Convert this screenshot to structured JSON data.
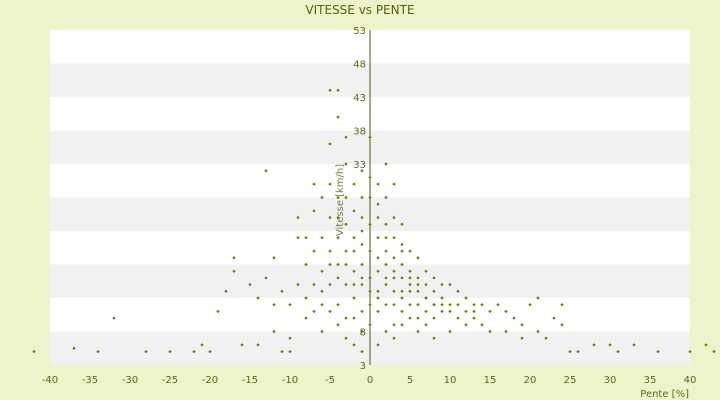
{
  "chart_data": {
    "type": "scatter",
    "title": "VITESSE vs PENTE",
    "xlabel": "Pente [%]",
    "ylabel": "Vitesse [km/h]",
    "xlim": [
      -40,
      40
    ],
    "ylim": [
      3,
      53
    ],
    "x_ticks": [
      -40,
      -35,
      -30,
      -25,
      -20,
      -15,
      -10,
      -5,
      0,
      5,
      10,
      15,
      20,
      25,
      30,
      35,
      40
    ],
    "y_ticks": [
      3,
      8,
      13,
      18,
      23,
      28,
      33,
      38,
      43,
      48,
      53
    ],
    "y_tick_labels_shown": [
      "3",
      "8",
      "33",
      "38",
      "43",
      "48",
      "53"
    ],
    "grid": "horizontal bands",
    "marker_color": "#6b7d0a",
    "band_color": "#f1f1f1",
    "series": [
      {
        "values": [
          [
            -42,
            5
          ],
          [
            -37,
            5.5
          ],
          [
            -34,
            5
          ],
          [
            -32,
            10
          ],
          [
            -28,
            5
          ],
          [
            -25,
            5
          ],
          [
            -22,
            5
          ],
          [
            -21,
            6
          ],
          [
            -20,
            5
          ],
          [
            -19,
            11
          ],
          [
            -18,
            14
          ],
          [
            -17,
            17
          ],
          [
            -17,
            19
          ],
          [
            -16,
            6
          ],
          [
            -15,
            15
          ],
          [
            -14,
            13
          ],
          [
            -14,
            6
          ],
          [
            -13,
            32
          ],
          [
            -13,
            16
          ],
          [
            -12,
            19
          ],
          [
            -12,
            12
          ],
          [
            -11,
            5
          ],
          [
            -10,
            7
          ],
          [
            -10,
            5
          ],
          [
            -9,
            22
          ],
          [
            -9,
            25
          ],
          [
            -8,
            18
          ],
          [
            -8,
            10
          ],
          [
            -7,
            26
          ],
          [
            -7,
            30
          ],
          [
            -6,
            28
          ],
          [
            -6,
            12
          ],
          [
            -5,
            30
          ],
          [
            -5,
            44
          ],
          [
            -5,
            36
          ],
          [
            -4,
            44
          ],
          [
            -4,
            40
          ],
          [
            -4,
            25
          ],
          [
            -4,
            18
          ],
          [
            -3,
            37
          ],
          [
            -3,
            33
          ],
          [
            -3,
            20
          ],
          [
            -2,
            30
          ],
          [
            -2,
            22
          ],
          [
            -2,
            10
          ],
          [
            -1,
            32
          ],
          [
            -1,
            25
          ],
          [
            -1,
            18
          ],
          [
            -1,
            8
          ],
          [
            0,
            37
          ],
          [
            0,
            28
          ],
          [
            0,
            20
          ],
          [
            0,
            12
          ],
          [
            1,
            30
          ],
          [
            1,
            22
          ],
          [
            1,
            17
          ],
          [
            1,
            14
          ],
          [
            2,
            33
          ],
          [
            2,
            28
          ],
          [
            2,
            20
          ],
          [
            2,
            15
          ],
          [
            3,
            30
          ],
          [
            3,
            22
          ],
          [
            3,
            16
          ],
          [
            3,
            12
          ],
          [
            4,
            24
          ],
          [
            4,
            18
          ],
          [
            4,
            14
          ],
          [
            5,
            20
          ],
          [
            5,
            16
          ],
          [
            5,
            12
          ],
          [
            6,
            19
          ],
          [
            6,
            14
          ],
          [
            6,
            10
          ],
          [
            7,
            17
          ],
          [
            7,
            13
          ],
          [
            7,
            9
          ],
          [
            8,
            16
          ],
          [
            8,
            12
          ],
          [
            9,
            15
          ],
          [
            9,
            11
          ],
          [
            10,
            15
          ],
          [
            10,
            11
          ],
          [
            11,
            14
          ],
          [
            11,
            10
          ],
          [
            12,
            13
          ],
          [
            12,
            9
          ],
          [
            13,
            12
          ],
          [
            13,
            10
          ],
          [
            14,
            12
          ],
          [
            14,
            9
          ],
          [
            15,
            11
          ],
          [
            15,
            8
          ],
          [
            16,
            12
          ],
          [
            17,
            11
          ],
          [
            17,
            8
          ],
          [
            18,
            10
          ],
          [
            19,
            9
          ],
          [
            19,
            7
          ],
          [
            20,
            12
          ],
          [
            21,
            8
          ],
          [
            21,
            13
          ],
          [
            22,
            7
          ],
          [
            23,
            10
          ],
          [
            24,
            12
          ],
          [
            24,
            9
          ],
          [
            25,
            5
          ],
          [
            26,
            5
          ],
          [
            28,
            6
          ],
          [
            30,
            6
          ],
          [
            31,
            5
          ],
          [
            33,
            6
          ],
          [
            36,
            5
          ],
          [
            40,
            5
          ],
          [
            42,
            6
          ],
          [
            43,
            5
          ],
          [
            -6,
            22
          ],
          [
            -5,
            20
          ],
          [
            -5,
            15
          ],
          [
            -4,
            22
          ],
          [
            -4,
            12
          ],
          [
            -3,
            24
          ],
          [
            -3,
            15
          ],
          [
            -3,
            10
          ],
          [
            -2,
            26
          ],
          [
            -2,
            17
          ],
          [
            -2,
            13
          ],
          [
            -1,
            28
          ],
          [
            -1,
            21
          ],
          [
            -1,
            15
          ],
          [
            -1,
            11
          ],
          [
            0,
            24
          ],
          [
            0,
            16
          ],
          [
            0,
            9
          ],
          [
            1,
            25
          ],
          [
            1,
            19
          ],
          [
            1,
            11
          ],
          [
            2,
            24
          ],
          [
            2,
            18
          ],
          [
            2,
            12
          ],
          [
            3,
            19
          ],
          [
            3,
            14
          ],
          [
            3,
            9
          ],
          [
            4,
            20
          ],
          [
            4,
            16
          ],
          [
            4,
            11
          ],
          [
            5,
            17
          ],
          [
            5,
            14
          ],
          [
            5,
            10
          ],
          [
            6,
            16
          ],
          [
            6,
            12
          ],
          [
            7,
            15
          ],
          [
            7,
            11
          ],
          [
            8,
            14
          ],
          [
            8,
            10
          ],
          [
            9,
            13
          ],
          [
            10,
            12
          ],
          [
            11,
            12
          ],
          [
            12,
            11
          ],
          [
            13,
            11
          ],
          [
            -7,
            20
          ],
          [
            -7,
            15
          ],
          [
            -8,
            22
          ],
          [
            -6,
            17
          ],
          [
            -5,
            25
          ],
          [
            -4,
            28
          ],
          [
            -3,
            28
          ],
          [
            -2,
            20
          ],
          [
            -1,
            23
          ],
          [
            0,
            31
          ],
          [
            1,
            27
          ],
          [
            2,
            22
          ],
          [
            3,
            25
          ],
          [
            4,
            21
          ],
          [
            -9,
            15
          ],
          [
            -10,
            12
          ],
          [
            -11,
            14
          ],
          [
            -12,
            8
          ],
          [
            -6,
            8
          ],
          [
            -5,
            11
          ],
          [
            -4,
            9
          ],
          [
            -3,
            7
          ],
          [
            -2,
            6
          ],
          [
            -1,
            5
          ],
          [
            1,
            6
          ],
          [
            2,
            8
          ],
          [
            3,
            7
          ],
          [
            4,
            9
          ],
          [
            6,
            8
          ],
          [
            8,
            7
          ],
          [
            10,
            8
          ],
          [
            -8,
            13
          ],
          [
            -7,
            11
          ],
          [
            -6,
            14
          ],
          [
            -5,
            18
          ],
          [
            -4,
            16
          ],
          [
            -3,
            18
          ],
          [
            -2,
            15
          ],
          [
            -1,
            16
          ],
          [
            0,
            14
          ],
          [
            1,
            13
          ],
          [
            2,
            16
          ],
          [
            3,
            17
          ],
          [
            4,
            13
          ],
          [
            5,
            15
          ],
          [
            6,
            15
          ],
          [
            7,
            13
          ],
          [
            8,
            12
          ],
          [
            9,
            12
          ]
        ]
      }
    ]
  }
}
